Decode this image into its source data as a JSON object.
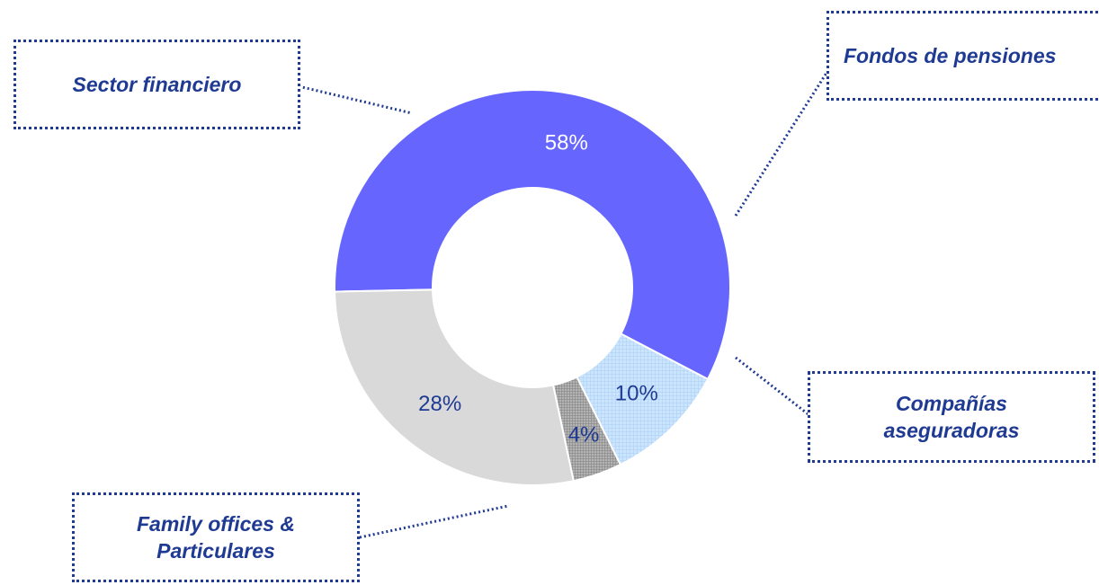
{
  "chart_data": {
    "type": "pie",
    "variant": "donut",
    "slices": [
      {
        "label": "Sector financiero",
        "value": 58,
        "display": "58%",
        "color": "#6666ff",
        "label_color": "#ffffff",
        "pattern": null
      },
      {
        "label": "Fondos de pensiones",
        "value": 10,
        "display": "10%",
        "color": "#cce5ff",
        "label_color": "#1f3a93",
        "pattern": "light-grid"
      },
      {
        "label": "Compañías aseguradoras",
        "value": 4,
        "display": "4%",
        "color": "#a6a6a6",
        "label_color": "#1f3a93",
        "pattern": "dark-grid"
      },
      {
        "label": "Family offices & Particulares",
        "value": 28,
        "display": "28%",
        "color": "#d9d9d9",
        "label_color": "#1f3a93",
        "pattern": null
      }
    ],
    "legend": "callout boxes"
  },
  "callouts": {
    "sector": "Sector financiero",
    "fondos": "Fondos de pensiones",
    "companias": "Compañías\naseguradoras",
    "family": "Family offices &\nParticulares"
  },
  "colors": {
    "callout_border": "#1f3a93",
    "callout_text": "#1f3a93",
    "leader_line": "#1f3a93"
  }
}
